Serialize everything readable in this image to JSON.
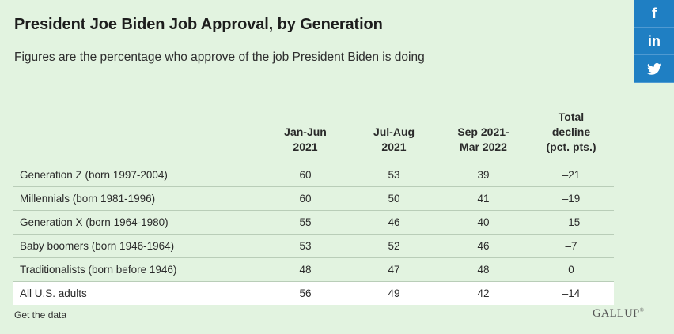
{
  "title": "President Joe Biden Job Approval, by Generation",
  "subtitle": "Figures are the percentage who approve of the job President Biden is doing",
  "social": {
    "facebook": "f",
    "linkedin": "in",
    "twitter_icon": "twitter-icon"
  },
  "chart_data": {
    "type": "table",
    "columns": [
      "",
      "Jan-Jun 2021",
      "Jul-Aug 2021",
      "Sep 2021-Mar 2022",
      "Total decline (pct. pts.)"
    ],
    "column_lines": [
      [
        ""
      ],
      [
        "Jan-Jun",
        "2021"
      ],
      [
        "Jul-Aug",
        "2021"
      ],
      [
        "Sep 2021-",
        "Mar 2022"
      ],
      [
        "Total",
        "decline",
        "(pct. pts.)"
      ]
    ],
    "rows": [
      [
        "Generation Z (born 1997-2004)",
        "60",
        "53",
        "39",
        "–21"
      ],
      [
        "Millennials (born 1981-1996)",
        "60",
        "50",
        "41",
        "–19"
      ],
      [
        "Generation X (born 1964-1980)",
        "55",
        "46",
        "40",
        "–15"
      ],
      [
        "Baby boomers (born 1946-1964)",
        "53",
        "52",
        "46",
        "–7"
      ],
      [
        "Traditionalists (born before 1946)",
        "48",
        "47",
        "48",
        "0"
      ],
      [
        "All U.S. adults",
        "56",
        "49",
        "42",
        "–14"
      ]
    ],
    "highlight_row": 5
  },
  "footer": {
    "get_data": "Get the data",
    "logo": "GALLUP",
    "logo_mark": "®"
  }
}
